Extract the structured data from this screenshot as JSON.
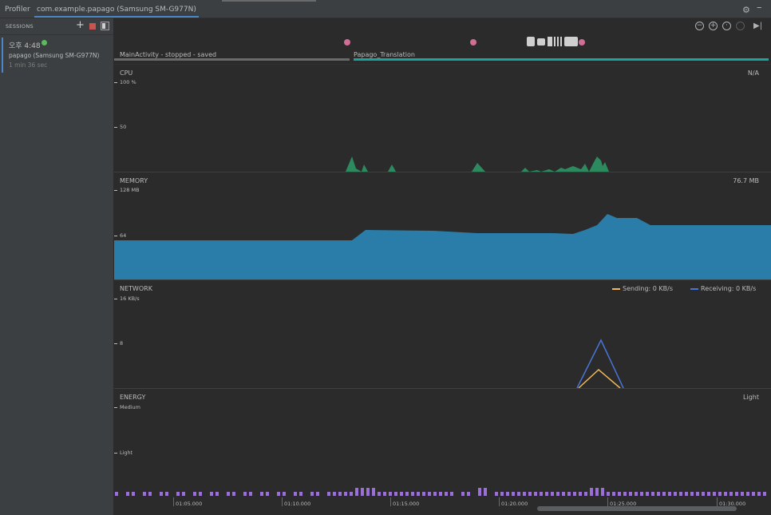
{
  "window": {
    "tabs": [
      {
        "label": "Profiler"
      },
      {
        "label": "com.example.papago (Samsung SM-G977N)"
      }
    ],
    "icons": [
      "gear-icon",
      "minimize-icon"
    ]
  },
  "sessions": {
    "header": "SESSIONS",
    "icons": [
      "plus-icon",
      "stop-icon",
      "panel-toggle-icon"
    ],
    "items": [
      {
        "time": "오후 4:48",
        "name": "papago (Samsung SM-G977N)",
        "duration": "1 min 36 sec",
        "status_color": "#5fb95f"
      }
    ]
  },
  "controls": {
    "icons": [
      "zoom-out-icon",
      "zoom-in-icon",
      "reset-zoom-icon",
      "attach-to-live-icon",
      "go-to-live-icon"
    ]
  },
  "activities": [
    {
      "label": "MainActivity - stopped - saved",
      "color": "#6a6a6a"
    },
    {
      "label": "Papago_Translation",
      "color": "#1ba39c"
    }
  ],
  "cpu": {
    "title": "CPU",
    "value": "N/A",
    "ticks": [
      "100 %",
      "50"
    ],
    "color": "#2d8a5f"
  },
  "memory": {
    "title": "MEMORY",
    "value": "76.7 MB",
    "ticks": [
      "128 MB",
      "64"
    ],
    "color": "#2a7da8"
  },
  "network": {
    "title": "NETWORK",
    "ticks": [
      "16 KB/s",
      "8"
    ],
    "legend": {
      "sending": "Sending: 0 KB/s",
      "receiving": "Receiving: 0 KB/s"
    },
    "sending_color": "#f0b85a",
    "receiving_color": "#4a74d6"
  },
  "energy": {
    "title": "ENERGY",
    "value": "Light",
    "ticks": [
      "Medium",
      "Light"
    ],
    "color": "#9a6fd6"
  },
  "timeline": {
    "labels": [
      "01:05.000",
      "01:10.000",
      "01:15.000",
      "01:20.000",
      "01:25.000",
      "01:30.000"
    ]
  }
}
